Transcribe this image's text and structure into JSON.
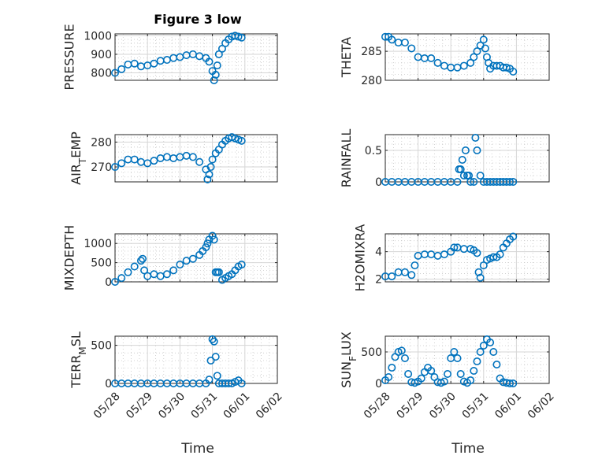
{
  "figure": {
    "title": "Figure 3 low",
    "marker_color": "#0072BD",
    "xlabel": "Time"
  },
  "chart_data": [
    {
      "type": "scatter",
      "id": "pressure",
      "ylabel": "PRESSURE",
      "xlim": [
        "05/28",
        "06/02"
      ],
      "ylim": [
        760,
        1010
      ],
      "yticks": [
        800,
        900,
        1000
      ],
      "show_xticklabels": false,
      "x": [
        0,
        0.2,
        0.4,
        0.6,
        0.8,
        1.0,
        1.2,
        1.4,
        1.6,
        1.8,
        2.0,
        2.2,
        2.4,
        2.6,
        2.8,
        2.9,
        3.0,
        3.05,
        3.1,
        3.15,
        3.2,
        3.3,
        3.4,
        3.5,
        3.6,
        3.7,
        3.8,
        3.9
      ],
      "y": [
        800,
        820,
        845,
        850,
        835,
        840,
        850,
        865,
        870,
        880,
        885,
        895,
        900,
        890,
        880,
        860,
        810,
        760,
        790,
        840,
        900,
        930,
        960,
        980,
        995,
        1000,
        995,
        990
      ]
    },
    {
      "type": "scatter",
      "id": "theta",
      "ylabel": "THETA",
      "xlim": [
        "05/28",
        "06/02"
      ],
      "ylim": [
        280,
        288
      ],
      "yticks": [
        280,
        285
      ],
      "show_xticklabels": false,
      "x": [
        0,
        0.1,
        0.2,
        0.4,
        0.6,
        0.8,
        1.0,
        1.2,
        1.4,
        1.6,
        1.8,
        2.0,
        2.2,
        2.4,
        2.6,
        2.7,
        2.8,
        2.9,
        3.0,
        3.05,
        3.1,
        3.15,
        3.2,
        3.3,
        3.4,
        3.5,
        3.6,
        3.7,
        3.8,
        3.9
      ],
      "y": [
        287.5,
        287.5,
        287,
        286.5,
        286.5,
        285.5,
        284,
        283.8,
        283.8,
        283,
        282.5,
        282.2,
        282.2,
        282.5,
        283,
        284,
        285,
        286,
        287,
        285.5,
        284,
        283,
        282,
        282.5,
        282.5,
        282.5,
        282.2,
        282.2,
        282,
        281.5
      ]
    },
    {
      "type": "scatter",
      "id": "air_temp",
      "ylabel": "AIR_TEMP",
      "ylabel_main": "AIR",
      "ylabel_sub": "T",
      "ylabel_rest": "EMP",
      "xlim": [
        "05/28",
        "06/02"
      ],
      "ylim": [
        264,
        283
      ],
      "yticks": [
        270,
        280
      ],
      "show_xticklabels": false,
      "x": [
        0,
        0.2,
        0.4,
        0.6,
        0.8,
        1.0,
        1.2,
        1.4,
        1.6,
        1.8,
        2.0,
        2.2,
        2.4,
        2.6,
        2.8,
        2.85,
        2.9,
        2.95,
        3.0,
        3.1,
        3.2,
        3.3,
        3.4,
        3.5,
        3.6,
        3.7,
        3.8,
        3.9
      ],
      "y": [
        270,
        271.5,
        273,
        273,
        272,
        271.5,
        272.5,
        273.5,
        274,
        273.5,
        274,
        274.5,
        274,
        272,
        269,
        265,
        267,
        270,
        273,
        275.5,
        277,
        279,
        280.5,
        281.5,
        282,
        281.5,
        281,
        280.5
      ]
    },
    {
      "type": "scatter",
      "id": "rainfall",
      "ylabel": "RAINFALL",
      "xlim": [
        "05/28",
        "06/02"
      ],
      "ylim": [
        0,
        0.75
      ],
      "yticks": [
        0,
        0.5
      ],
      "show_xticklabels": false,
      "x": [
        0,
        0.2,
        0.4,
        0.6,
        0.8,
        1.0,
        1.2,
        1.4,
        1.6,
        1.8,
        2.0,
        2.2,
        2.25,
        2.3,
        2.35,
        2.4,
        2.45,
        2.5,
        2.55,
        2.6,
        2.7,
        2.75,
        2.8,
        2.9,
        3.0,
        3.1,
        3.2,
        3.3,
        3.4,
        3.5,
        3.6,
        3.7,
        3.8,
        3.9
      ],
      "y": [
        0,
        0,
        0,
        0,
        0,
        0,
        0,
        0,
        0,
        0,
        0,
        0,
        0.2,
        0.2,
        0.35,
        0.1,
        0.5,
        0.1,
        0.1,
        0,
        0,
        0.7,
        0.5,
        0.1,
        0,
        0,
        0,
        0,
        0,
        0,
        0,
        0,
        0,
        0
      ]
    },
    {
      "type": "scatter",
      "id": "mixdepth",
      "ylabel": "MIXDEPTH",
      "xlim": [
        "05/28",
        "06/02"
      ],
      "ylim": [
        0,
        1250
      ],
      "yticks": [
        0,
        500,
        1000
      ],
      "show_xticklabels": false,
      "x": [
        0,
        0.2,
        0.4,
        0.6,
        0.8,
        0.85,
        0.9,
        1.0,
        1.2,
        1.4,
        1.6,
        1.8,
        2.0,
        2.2,
        2.4,
        2.6,
        2.7,
        2.8,
        2.85,
        2.9,
        3.0,
        3.05,
        3.1,
        3.15,
        3.2,
        3.3,
        3.4,
        3.5,
        3.6,
        3.7,
        3.8,
        3.9
      ],
      "y": [
        0,
        100,
        250,
        400,
        550,
        600,
        300,
        150,
        200,
        150,
        200,
        300,
        450,
        550,
        600,
        700,
        800,
        900,
        1000,
        1100,
        1200,
        1100,
        250,
        250,
        250,
        50,
        100,
        150,
        200,
        300,
        400,
        450
      ]
    },
    {
      "type": "scatter",
      "id": "h2omixra",
      "ylabel": "H2OMIXRA",
      "xlim": [
        "05/28",
        "06/02"
      ],
      "ylim": [
        1.8,
        5.3
      ],
      "yticks": [
        2,
        4
      ],
      "show_xticklabels": false,
      "x": [
        0,
        0.2,
        0.4,
        0.6,
        0.8,
        0.9,
        1.0,
        1.2,
        1.4,
        1.6,
        1.8,
        2.0,
        2.1,
        2.2,
        2.4,
        2.6,
        2.7,
        2.8,
        2.85,
        2.9,
        3.0,
        3.1,
        3.2,
        3.3,
        3.4,
        3.5,
        3.6,
        3.7,
        3.8,
        3.9
      ],
      "y": [
        2.2,
        2.2,
        2.5,
        2.5,
        2.3,
        3.0,
        3.7,
        3.8,
        3.8,
        3.7,
        3.8,
        4.0,
        4.3,
        4.3,
        4.2,
        4.2,
        4.1,
        3.9,
        2.5,
        2.1,
        3.0,
        3.4,
        3.5,
        3.6,
        3.6,
        3.8,
        4.3,
        4.6,
        4.9,
        5.1
      ]
    },
    {
      "type": "scatter",
      "id": "terr_msl",
      "ylabel": "TERR_MSL",
      "ylabel_main": "TERR",
      "ylabel_sub": "M",
      "ylabel_rest": "SL",
      "xlim": [
        "05/28",
        "06/02"
      ],
      "ylim": [
        0,
        620
      ],
      "yticks": [
        0,
        500
      ],
      "show_xticklabels": true,
      "xticks": [
        "05/28",
        "05/29",
        "05/30",
        "05/31",
        "06/01",
        "06/02"
      ],
      "x": [
        0,
        0.2,
        0.4,
        0.6,
        0.8,
        1.0,
        1.2,
        1.4,
        1.6,
        1.8,
        2.0,
        2.2,
        2.4,
        2.6,
        2.8,
        2.9,
        2.95,
        3.0,
        3.05,
        3.1,
        3.15,
        3.2,
        3.3,
        3.4,
        3.5,
        3.6,
        3.7,
        3.8,
        3.9
      ],
      "y": [
        0,
        0,
        0,
        0,
        0,
        0,
        0,
        0,
        0,
        0,
        0,
        0,
        0,
        0,
        0,
        50,
        300,
        580,
        550,
        350,
        100,
        0,
        0,
        0,
        0,
        0,
        20,
        40,
        0
      ]
    },
    {
      "type": "scatter",
      "id": "sunflux",
      "ylabel": "SUN_FLUX",
      "ylabel_main": "SUN",
      "ylabel_sub": "F",
      "ylabel_rest": "LUX",
      "xlim": [
        "05/28",
        "06/02"
      ],
      "ylim": [
        0,
        750
      ],
      "yticks": [
        0,
        500
      ],
      "show_xticklabels": true,
      "xticks": [
        "05/28",
        "05/29",
        "05/30",
        "05/31",
        "06/01",
        "06/02"
      ],
      "x": [
        0,
        0.1,
        0.2,
        0.3,
        0.4,
        0.5,
        0.6,
        0.7,
        0.8,
        0.9,
        1.0,
        1.1,
        1.2,
        1.3,
        1.4,
        1.5,
        1.6,
        1.7,
        1.8,
        1.9,
        2.0,
        2.1,
        2.2,
        2.3,
        2.4,
        2.5,
        2.6,
        2.7,
        2.8,
        2.9,
        3.0,
        3.1,
        3.2,
        3.3,
        3.4,
        3.5,
        3.6,
        3.7,
        3.8,
        3.9
      ],
      "y": [
        50,
        100,
        250,
        420,
        500,
        520,
        400,
        150,
        20,
        10,
        30,
        80,
        180,
        250,
        200,
        100,
        20,
        10,
        30,
        150,
        400,
        500,
        400,
        150,
        30,
        10,
        50,
        200,
        350,
        500,
        600,
        700,
        650,
        500,
        300,
        80,
        20,
        10,
        0,
        0
      ]
    }
  ]
}
